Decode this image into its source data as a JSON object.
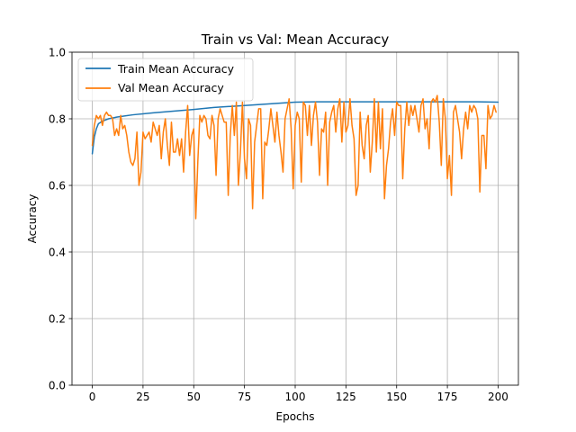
{
  "chart_data": {
    "type": "line",
    "title": "Train vs Val: Mean Accuracy",
    "xlabel": "Epochs",
    "ylabel": "Accuracy",
    "xlim": [
      -10,
      210
    ],
    "ylim": [
      0.0,
      1.0
    ],
    "xticks": [
      0,
      25,
      50,
      75,
      100,
      125,
      150,
      175,
      200
    ],
    "xtick_labels": [
      "0",
      "25",
      "50",
      "75",
      "100",
      "125",
      "150",
      "175",
      "200"
    ],
    "yticks": [
      0.0,
      0.2,
      0.4,
      0.6,
      0.8,
      1.0
    ],
    "ytick_labels": [
      "0.0",
      "0.2",
      "0.4",
      "0.6",
      "0.8",
      "1.0"
    ],
    "grid": true,
    "legend_position": "top-left",
    "series": [
      {
        "name": "Train Mean Accuracy",
        "color": "#1f77b4",
        "points": [
          [
            0,
            0.695
          ],
          [
            1,
            0.745
          ],
          [
            2,
            0.77
          ],
          [
            3,
            0.785
          ],
          [
            5,
            0.793
          ],
          [
            8,
            0.8
          ],
          [
            12,
            0.805
          ],
          [
            20,
            0.812
          ],
          [
            30,
            0.818
          ],
          [
            40,
            0.823
          ],
          [
            50,
            0.828
          ],
          [
            60,
            0.834
          ],
          [
            70,
            0.838
          ],
          [
            80,
            0.842
          ],
          [
            90,
            0.846
          ],
          [
            100,
            0.85
          ],
          [
            110,
            0.851
          ],
          [
            120,
            0.851
          ],
          [
            130,
            0.851
          ],
          [
            140,
            0.851
          ],
          [
            150,
            0.851
          ],
          [
            160,
            0.851
          ],
          [
            170,
            0.851
          ],
          [
            180,
            0.851
          ],
          [
            190,
            0.851
          ],
          [
            200,
            0.85
          ]
        ]
      },
      {
        "name": "Val Mean Accuracy",
        "color": "#ff7f0e",
        "points": [
          [
            0,
            0.72
          ],
          [
            1,
            0.78
          ],
          [
            2,
            0.81
          ],
          [
            3,
            0.8
          ],
          [
            4,
            0.81
          ],
          [
            5,
            0.78
          ],
          [
            6,
            0.81
          ],
          [
            7,
            0.82
          ],
          [
            8,
            0.81
          ],
          [
            9,
            0.81
          ],
          [
            10,
            0.8
          ],
          [
            11,
            0.75
          ],
          [
            12,
            0.77
          ],
          [
            13,
            0.75
          ],
          [
            14,
            0.81
          ],
          [
            15,
            0.77
          ],
          [
            16,
            0.78
          ],
          [
            17,
            0.75
          ],
          [
            18,
            0.7
          ],
          [
            19,
            0.67
          ],
          [
            20,
            0.66
          ],
          [
            21,
            0.68
          ],
          [
            22,
            0.76
          ],
          [
            23,
            0.6
          ],
          [
            24,
            0.64
          ],
          [
            25,
            0.76
          ],
          [
            26,
            0.74
          ],
          [
            27,
            0.75
          ],
          [
            28,
            0.76
          ],
          [
            29,
            0.73
          ],
          [
            30,
            0.79
          ],
          [
            31,
            0.77
          ],
          [
            32,
            0.75
          ],
          [
            33,
            0.78
          ],
          [
            34,
            0.68
          ],
          [
            35,
            0.76
          ],
          [
            36,
            0.8
          ],
          [
            37,
            0.72
          ],
          [
            38,
            0.66
          ],
          [
            39,
            0.79
          ],
          [
            40,
            0.7
          ],
          [
            41,
            0.7
          ],
          [
            42,
            0.74
          ],
          [
            43,
            0.69
          ],
          [
            44,
            0.74
          ],
          [
            45,
            0.64
          ],
          [
            46,
            0.76
          ],
          [
            47,
            0.84
          ],
          [
            48,
            0.69
          ],
          [
            49,
            0.75
          ],
          [
            50,
            0.77
          ],
          [
            51,
            0.5
          ],
          [
            52,
            0.67
          ],
          [
            53,
            0.81
          ],
          [
            54,
            0.79
          ],
          [
            55,
            0.81
          ],
          [
            56,
            0.8
          ],
          [
            57,
            0.75
          ],
          [
            58,
            0.74
          ],
          [
            59,
            0.81
          ],
          [
            60,
            0.78
          ],
          [
            61,
            0.63
          ],
          [
            62,
            0.8
          ],
          [
            63,
            0.83
          ],
          [
            64,
            0.81
          ],
          [
            65,
            0.79
          ],
          [
            66,
            0.79
          ],
          [
            67,
            0.57
          ],
          [
            68,
            0.75
          ],
          [
            69,
            0.84
          ],
          [
            70,
            0.75
          ],
          [
            71,
            0.85
          ],
          [
            72,
            0.6
          ],
          [
            73,
            0.7
          ],
          [
            74,
            0.85
          ],
          [
            75,
            0.68
          ],
          [
            76,
            0.62
          ],
          [
            77,
            0.8
          ],
          [
            78,
            0.78
          ],
          [
            79,
            0.53
          ],
          [
            80,
            0.73
          ],
          [
            81,
            0.78
          ],
          [
            82,
            0.83
          ],
          [
            83,
            0.83
          ],
          [
            84,
            0.56
          ],
          [
            85,
            0.73
          ],
          [
            86,
            0.72
          ],
          [
            87,
            0.77
          ],
          [
            88,
            0.83
          ],
          [
            89,
            0.78
          ],
          [
            90,
            0.73
          ],
          [
            91,
            0.82
          ],
          [
            92,
            0.75
          ],
          [
            93,
            0.7
          ],
          [
            94,
            0.64
          ],
          [
            95,
            0.8
          ],
          [
            96,
            0.83
          ],
          [
            97,
            0.86
          ],
          [
            98,
            0.77
          ],
          [
            99,
            0.59
          ],
          [
            100,
            0.78
          ],
          [
            101,
            0.82
          ],
          [
            102,
            0.8
          ],
          [
            103,
            0.61
          ],
          [
            104,
            0.85
          ],
          [
            105,
            0.84
          ],
          [
            106,
            0.75
          ],
          [
            107,
            0.84
          ],
          [
            108,
            0.72
          ],
          [
            109,
            0.81
          ],
          [
            110,
            0.85
          ],
          [
            111,
            0.79
          ],
          [
            112,
            0.63
          ],
          [
            113,
            0.77
          ],
          [
            114,
            0.76
          ],
          [
            115,
            0.82
          ],
          [
            116,
            0.6
          ],
          [
            117,
            0.79
          ],
          [
            118,
            0.82
          ],
          [
            119,
            0.84
          ],
          [
            120,
            0.76
          ],
          [
            121,
            0.83
          ],
          [
            122,
            0.86
          ],
          [
            123,
            0.73
          ],
          [
            124,
            0.85
          ],
          [
            125,
            0.76
          ],
          [
            126,
            0.78
          ],
          [
            127,
            0.86
          ],
          [
            128,
            0.78
          ],
          [
            129,
            0.74
          ],
          [
            130,
            0.57
          ],
          [
            131,
            0.6
          ],
          [
            132,
            0.82
          ],
          [
            133,
            0.72
          ],
          [
            134,
            0.68
          ],
          [
            135,
            0.78
          ],
          [
            136,
            0.81
          ],
          [
            137,
            0.64
          ],
          [
            138,
            0.73
          ],
          [
            139,
            0.86
          ],
          [
            140,
            0.7
          ],
          [
            141,
            0.85
          ],
          [
            142,
            0.71
          ],
          [
            143,
            0.83
          ],
          [
            144,
            0.56
          ],
          [
            145,
            0.66
          ],
          [
            146,
            0.71
          ],
          [
            147,
            0.79
          ],
          [
            148,
            0.83
          ],
          [
            149,
            0.75
          ],
          [
            150,
            0.85
          ],
          [
            151,
            0.84
          ],
          [
            152,
            0.84
          ],
          [
            153,
            0.62
          ],
          [
            154,
            0.77
          ],
          [
            155,
            0.85
          ],
          [
            156,
            0.78
          ],
          [
            157,
            0.84
          ],
          [
            158,
            0.81
          ],
          [
            159,
            0.84
          ],
          [
            160,
            0.8
          ],
          [
            161,
            0.76
          ],
          [
            162,
            0.84
          ],
          [
            163,
            0.86
          ],
          [
            164,
            0.77
          ],
          [
            165,
            0.8
          ],
          [
            166,
            0.71
          ],
          [
            167,
            0.85
          ],
          [
            168,
            0.86
          ],
          [
            169,
            0.85
          ],
          [
            170,
            0.87
          ],
          [
            171,
            0.79
          ],
          [
            172,
            0.66
          ],
          [
            173,
            0.86
          ],
          [
            174,
            0.8
          ],
          [
            175,
            0.62
          ],
          [
            176,
            0.69
          ],
          [
            177,
            0.57
          ],
          [
            178,
            0.82
          ],
          [
            179,
            0.84
          ],
          [
            180,
            0.8
          ],
          [
            181,
            0.76
          ],
          [
            182,
            0.68
          ],
          [
            183,
            0.77
          ],
          [
            184,
            0.82
          ],
          [
            185,
            0.77
          ],
          [
            186,
            0.84
          ],
          [
            187,
            0.82
          ],
          [
            188,
            0.84
          ],
          [
            189,
            0.83
          ],
          [
            190,
            0.8
          ],
          [
            191,
            0.58
          ],
          [
            192,
            0.75
          ],
          [
            193,
            0.75
          ],
          [
            194,
            0.65
          ],
          [
            195,
            0.84
          ],
          [
            196,
            0.8
          ],
          [
            197,
            0.81
          ],
          [
            198,
            0.84
          ],
          [
            199,
            0.82
          ]
        ]
      }
    ]
  }
}
